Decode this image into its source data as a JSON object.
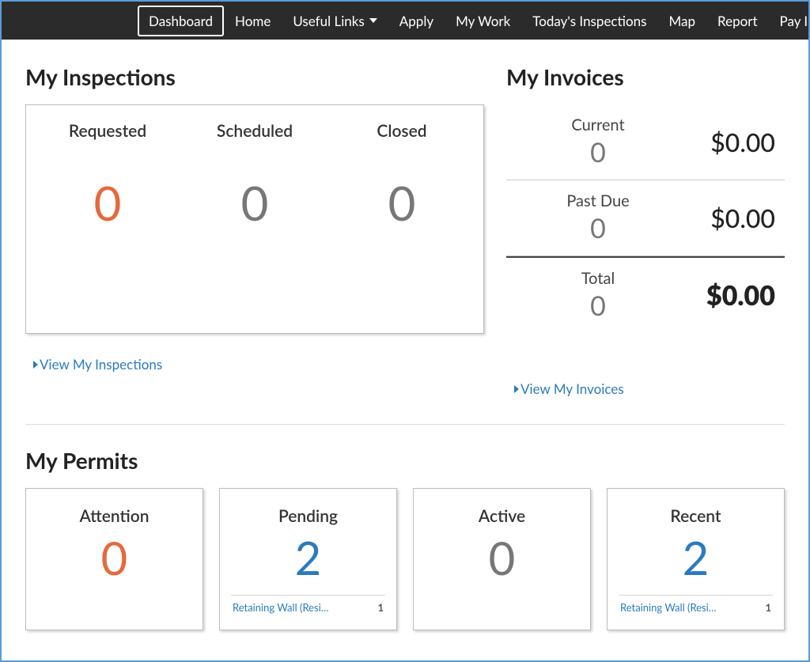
{
  "nav": {
    "items": [
      {
        "label": "Dashboard",
        "active": true
      },
      {
        "label": "Home"
      },
      {
        "label": "Useful Links",
        "dropdown": true
      },
      {
        "label": "Apply"
      },
      {
        "label": "My Work"
      },
      {
        "label": "Today's Inspections"
      },
      {
        "label": "Map"
      },
      {
        "label": "Report"
      },
      {
        "label": "Pay Invoices"
      }
    ]
  },
  "inspections": {
    "title": "My Inspections",
    "columns": [
      {
        "label": "Requested",
        "value": "0",
        "color": "orange"
      },
      {
        "label": "Scheduled",
        "value": "0",
        "color": "gray"
      },
      {
        "label": "Closed",
        "value": "0",
        "color": "gray"
      }
    ],
    "view_link": "View My Inspections"
  },
  "invoices": {
    "title": "My Invoices",
    "rows": [
      {
        "label": "Current",
        "count": "0",
        "amount": "$0.00"
      },
      {
        "label": "Past Due",
        "count": "0",
        "amount": "$0.00"
      }
    ],
    "total": {
      "label": "Total",
      "count": "0",
      "amount": "$0.00"
    },
    "view_link": "View My Invoices"
  },
  "permits": {
    "title": "My Permits",
    "cards": [
      {
        "label": "Attention",
        "value": "0",
        "color": "orange",
        "items": []
      },
      {
        "label": "Pending",
        "value": "2",
        "color": "blue",
        "items": [
          {
            "name": "Retaining Wall (Resi…",
            "count": "1"
          }
        ]
      },
      {
        "label": "Active",
        "value": "0",
        "color": "gray",
        "items": []
      },
      {
        "label": "Recent",
        "value": "2",
        "color": "blue",
        "items": [
          {
            "name": "Retaining Wall (Resi…",
            "count": "1"
          }
        ]
      }
    ]
  },
  "colors": {
    "orange": "#e46a3d",
    "gray": "#777777",
    "blue": "#2a7bbd",
    "navbar_bg": "#2b2b2b",
    "frame_border": "#5a9bd5"
  }
}
